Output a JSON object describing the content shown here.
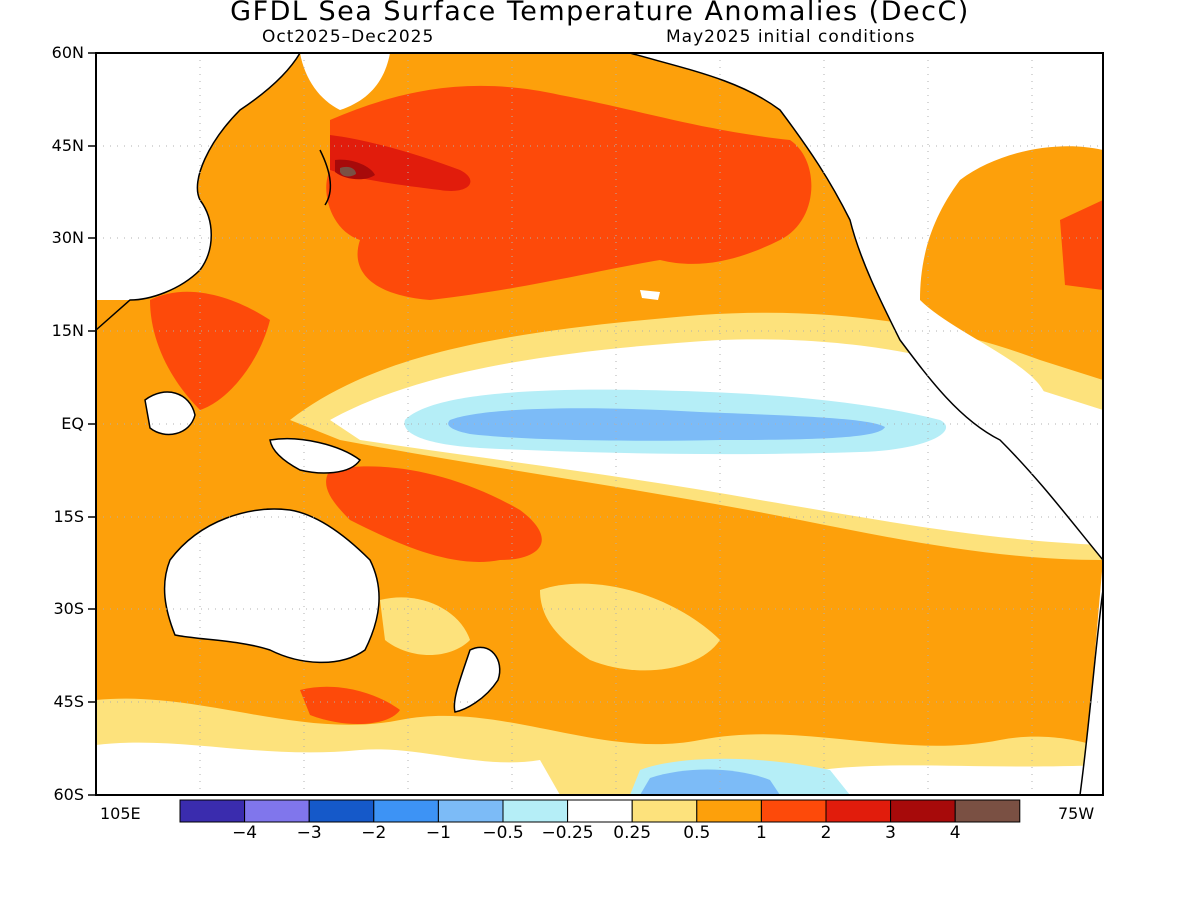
{
  "title": "GFDL Sea Surface Temperature Anomalies (DecC)",
  "subtitle_left": "Oct2025–Dec2025",
  "subtitle_right": "May2025 initial conditions",
  "lat_labels": [
    "60N",
    "45N",
    "30N",
    "15N",
    "EQ",
    "15S",
    "30S",
    "45S",
    "60S"
  ],
  "lon_left": "105E",
  "lon_right": "75W",
  "legend": {
    "colors": [
      "#3a2cae",
      "#8076ec",
      "#1559c9",
      "#3d93f5",
      "#7cbbf7",
      "#b5eef7",
      "#ffffff",
      "#fde27c",
      "#fda00b",
      "#fd4a0a",
      "#e11c0c",
      "#a70a0a",
      "#7a5043"
    ],
    "tick_labels": [
      "−4",
      "−3",
      "−2",
      "−1",
      "−0.5",
      "−0.25",
      "0.25",
      "0.5",
      "1",
      "2",
      "3",
      "4"
    ]
  },
  "colors": {
    "land": "#ffffff",
    "coast": "#000000",
    "grid": "#b0b0b0",
    "ocean_warm": "#fda00b"
  }
}
